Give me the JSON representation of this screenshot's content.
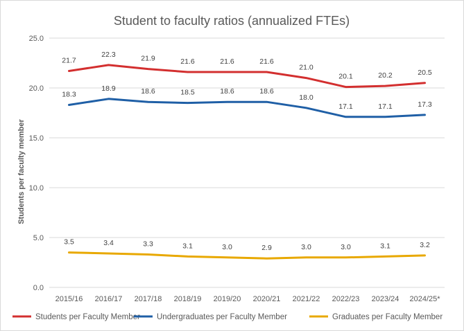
{
  "chart_data": {
    "type": "line",
    "title": "Student to faculty ratios (annualized FTEs)",
    "xlabel": "",
    "ylabel": "Students per faculty member",
    "ylim": [
      0,
      25
    ],
    "yticks": [
      "0.0",
      "5.0",
      "10.0",
      "15.0",
      "20.0",
      "25.0"
    ],
    "grid": true,
    "legend_position": "bottom",
    "categories": [
      "2015/16",
      "2016/17",
      "2017/18",
      "2018/19",
      "2019/20",
      "2020/21",
      "2021/22",
      "2022/23",
      "2023/24",
      "2024/25*"
    ],
    "series": [
      {
        "name": "Students per Faculty Member",
        "color": "#d32f2f",
        "values": [
          21.7,
          22.3,
          21.9,
          21.6,
          21.6,
          21.6,
          21.0,
          20.1,
          20.2,
          20.5
        ],
        "labels": [
          "21.7",
          "22.3",
          "21.9",
          "21.6",
          "21.6",
          "21.6",
          "21.0",
          "20.1",
          "20.2",
          "20.5"
        ]
      },
      {
        "name": "Undergraduates per Faculty Member",
        "color": "#1f5fa6",
        "values": [
          18.3,
          18.9,
          18.6,
          18.5,
          18.6,
          18.6,
          18.0,
          17.1,
          17.1,
          17.3
        ],
        "labels": [
          "18.3",
          "18.9",
          "18.6",
          "18.5",
          "18.6",
          "18.6",
          "18.0",
          "17.1",
          "17.1",
          "17.3"
        ]
      },
      {
        "name": "Graduates per Faculty Member",
        "color": "#e8a800",
        "values": [
          3.5,
          3.4,
          3.3,
          3.1,
          3.0,
          2.9,
          3.0,
          3.0,
          3.1,
          3.2
        ],
        "labels": [
          "3.5",
          "3.4",
          "3.3",
          "3.1",
          "3.0",
          "2.9",
          "3.0",
          "3.0",
          "3.1",
          "3.2"
        ]
      }
    ]
  }
}
